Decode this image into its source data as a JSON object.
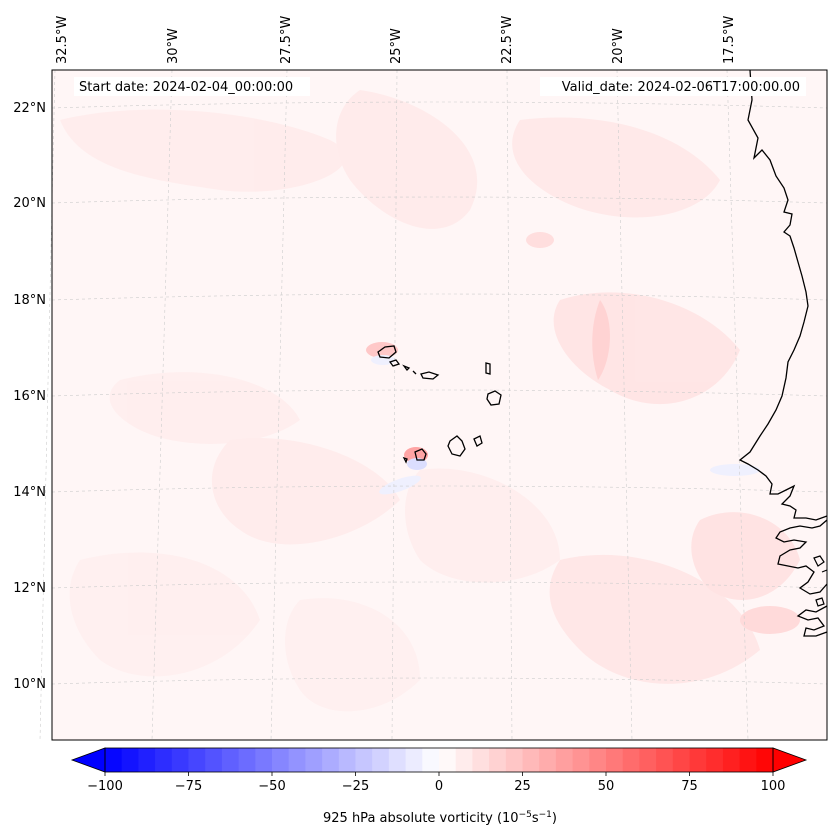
{
  "map": {
    "start_date": "Start date: 2024-02-04_00:00:00",
    "valid_date": "Valid_date: 2024-02-06T17:00:00.00",
    "lon_labels": [
      "32.5°W",
      "30°W",
      "27.5°W",
      "25°W",
      "22.5°W",
      "20°W",
      "17.5°W"
    ],
    "lat_labels": [
      "22°N",
      "20°N",
      "18°N",
      "16°N",
      "14°N",
      "12°N",
      "10°N"
    ]
  },
  "colorbar": {
    "label_prefix": "925 hPa absolute vorticity (10",
    "label_exp1": "−5",
    "label_mid": "s",
    "label_exp2": "−1",
    "label_suffix": ")",
    "min": -100,
    "max": 100,
    "ticks": [
      "−100",
      "−75",
      "−50",
      "−25",
      "0",
      "25",
      "50",
      "75",
      "100"
    ],
    "levels": 40,
    "neg_color": "#0000ff",
    "pos_color": "#ff0000",
    "mid_color": "#ffffff"
  }
}
